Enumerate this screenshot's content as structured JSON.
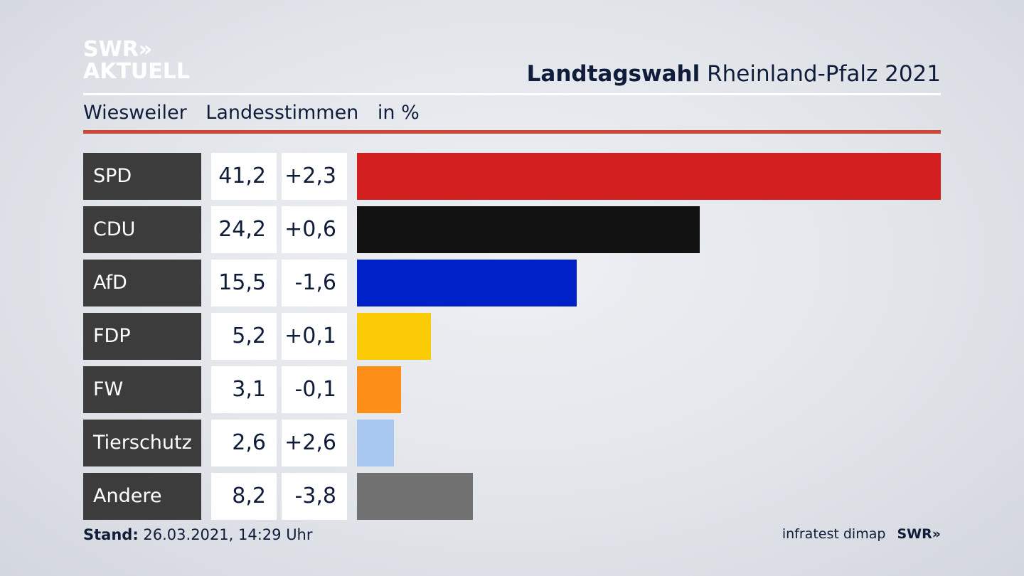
{
  "header": {
    "logo_line1": "SWR»",
    "logo_line2": "AKTUELL",
    "title_bold": "Landtagswahl",
    "title_rest": "Rheinland-Pfalz 2021",
    "subtitle_place": "Wiesweiler",
    "subtitle_measure": "Landesstimmen",
    "subtitle_unit": "in %"
  },
  "footer": {
    "stand_label": "Stand:",
    "stand_value": "26.03.2021, 14:29 Uhr",
    "source": "infratest dimap",
    "brand": "SWR»"
  },
  "chart_data": {
    "type": "bar",
    "categories": [
      "SPD",
      "CDU",
      "AfD",
      "FDP",
      "FW",
      "Tierschutz",
      "Andere"
    ],
    "values": [
      41.2,
      24.2,
      15.5,
      5.2,
      3.1,
      2.6,
      8.2
    ],
    "values_label": [
      "41,2",
      "24,2",
      "15,5",
      "5,2",
      "3,1",
      "2,6",
      "8,2"
    ],
    "changes_label": [
      "+2,3",
      "+0,6",
      "-1,6",
      "+0,1",
      "-0,1",
      "+2,6",
      "-3,8"
    ],
    "colors": [
      "#d42020",
      "#121212",
      "#0021c8",
      "#fbcb06",
      "#fd8e18",
      "#a9c8ef",
      "#717171"
    ],
    "xlim": [
      0,
      41.2
    ]
  }
}
